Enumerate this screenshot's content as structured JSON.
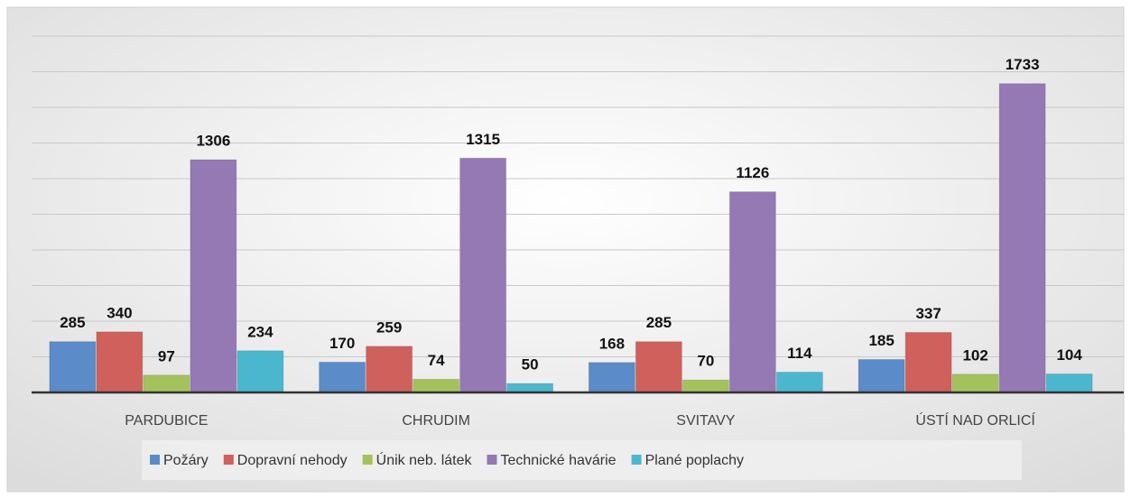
{
  "chart_data": {
    "type": "bar",
    "categories": [
      "PARDUBICE",
      "CHRUDIM",
      "SVITAVY",
      "ÚSTÍ NAD ORLICÍ"
    ],
    "series": [
      {
        "name": "Požáry",
        "color": "#5b8bc8",
        "values": [
          285,
          170,
          168,
          185
        ]
      },
      {
        "name": "Dopravní nehody",
        "color": "#cf605c",
        "values": [
          340,
          259,
          285,
          337
        ]
      },
      {
        "name": "Únik neb. látek",
        "color": "#a4c25c",
        "values": [
          97,
          74,
          70,
          102
        ]
      },
      {
        "name": "Technické havárie",
        "color": "#9479b4",
        "values": [
          1306,
          1315,
          1126,
          1733
        ]
      },
      {
        "name": "Plané poplachy",
        "color": "#4bb7cf",
        "values": [
          234,
          50,
          114,
          104
        ]
      }
    ],
    "ylim": [
      0,
      2000
    ],
    "yticks": [
      0,
      200,
      400,
      600,
      800,
      1000,
      1200,
      1400,
      1600,
      1800,
      2000
    ],
    "grid": true,
    "legend": "bottom"
  }
}
